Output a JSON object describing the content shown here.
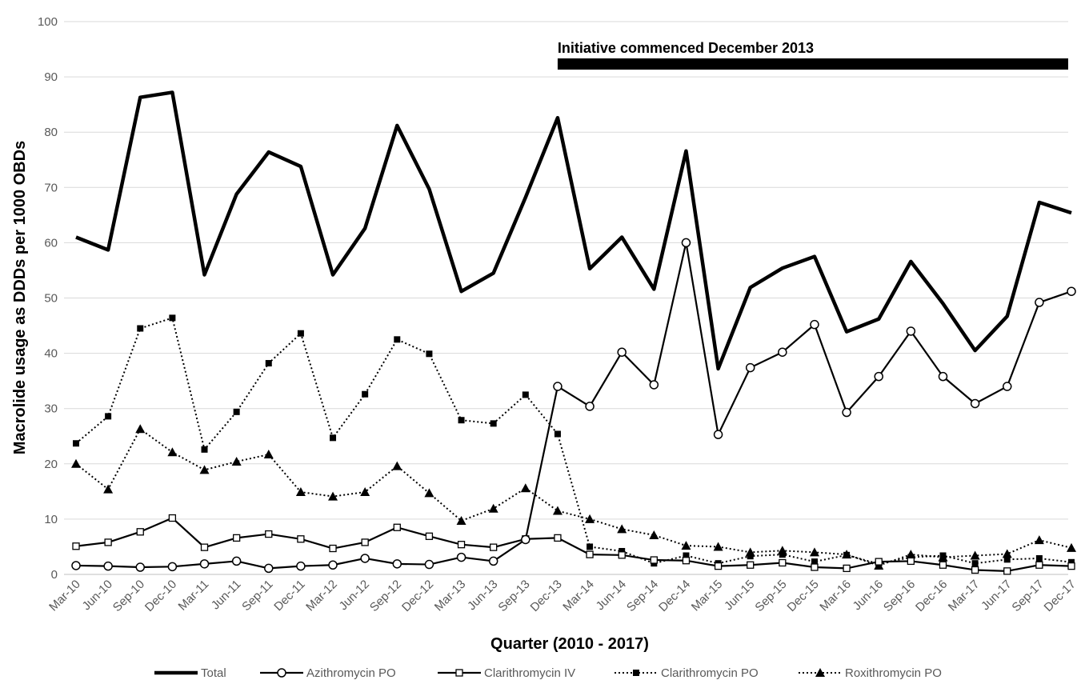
{
  "chart_data": {
    "type": "line",
    "xlabel": "Quarter (2010 - 2017)",
    "ylabel": "Macrolide usage as DDDs per 1000 OBDs",
    "ylim": [
      0,
      100
    ],
    "yticks": [
      0,
      10,
      20,
      30,
      40,
      50,
      60,
      70,
      80,
      90,
      100
    ],
    "grid": true,
    "legend_position": "bottom",
    "categories": [
      "Mar-10",
      "Jun-10",
      "Sep-10",
      "Dec-10",
      "Mar-11",
      "Jun-11",
      "Sep-11",
      "Dec-11",
      "Mar-12",
      "Jun-12",
      "Sep-12",
      "Dec-12",
      "Mar-13",
      "Jun-13",
      "Sep-13",
      "Dec-13",
      "Mar-14",
      "Jun-14",
      "Sep-14",
      "Dec-14",
      "Mar-15",
      "Jun-15",
      "Sep-15",
      "Dec-15",
      "Mar-16",
      "Jun-16",
      "Sep-16",
      "Dec-16",
      "Mar-17",
      "Jun-17",
      "Sep-17",
      "Dec-17"
    ],
    "annotation": {
      "text": "Initiative commenced December 2013",
      "start": "Dec-13",
      "end": "Dec-17"
    },
    "series": [
      {
        "name": "Total",
        "style": "thick-solid",
        "marker": "none",
        "values": [
          61,
          58.7,
          86.3,
          87.2,
          54.2,
          68.8,
          76.4,
          73.8,
          54.2,
          62.6,
          81.2,
          69.7,
          51.2,
          54.5,
          68.2,
          82.6,
          55.3,
          61,
          51.6,
          76.6,
          37.2,
          51.9,
          55.4,
          57.5,
          43.9,
          46.2,
          56.6,
          49,
          40.5,
          46.7,
          67.3,
          65.4
        ]
      },
      {
        "name": "Azithromycin PO",
        "style": "solid",
        "marker": "open-circle",
        "values": [
          1.6,
          1.5,
          1.3,
          1.4,
          1.9,
          2.4,
          1.1,
          1.5,
          1.7,
          2.9,
          1.9,
          1.8,
          3.1,
          2.4,
          6.3,
          34,
          30.4,
          40.2,
          34.3,
          60,
          25.3,
          37.4,
          40.2,
          45.2,
          29.3,
          35.8,
          44,
          35.8,
          30.9,
          34,
          49.2,
          51.2
        ]
      },
      {
        "name": "Clarithromycin IV",
        "style": "solid",
        "marker": "open-square",
        "values": [
          5.1,
          5.8,
          7.7,
          10.2,
          4.9,
          6.6,
          7.3,
          6.4,
          4.7,
          5.8,
          8.5,
          6.9,
          5.4,
          4.9,
          6.4,
          6.6,
          3.6,
          3.5,
          2.6,
          2.5,
          1.5,
          1.7,
          2.1,
          1.3,
          1.1,
          2.3,
          2.4,
          1.7,
          0.8,
          0.6,
          1.7,
          1.5
        ]
      },
      {
        "name": "Clarithromycin PO",
        "style": "dotted",
        "marker": "filled-square",
        "values": [
          23.7,
          28.6,
          44.5,
          46.4,
          22.6,
          29.4,
          38.2,
          43.6,
          24.7,
          32.6,
          42.5,
          39.9,
          27.9,
          27.3,
          32.5,
          25.4,
          5,
          4.2,
          2,
          3.4,
          2,
          3.3,
          3.6,
          2.3,
          3.5,
          1.9,
          3.1,
          3.4,
          2,
          2.7,
          2.9,
          2.2
        ]
      },
      {
        "name": "Roxithromycin PO",
        "style": "dotted",
        "marker": "filled-triangle",
        "values": [
          20,
          15.4,
          26.3,
          22.1,
          18.9,
          20.4,
          21.7,
          14.9,
          14.1,
          14.9,
          19.6,
          14.7,
          9.7,
          11.9,
          15.6,
          11.5,
          10,
          8.2,
          7.1,
          5.2,
          5,
          4,
          4.3,
          4,
          3.6,
          1.6,
          3.6,
          3.1,
          3.4,
          3.7,
          6.2,
          4.8
        ]
      }
    ]
  }
}
